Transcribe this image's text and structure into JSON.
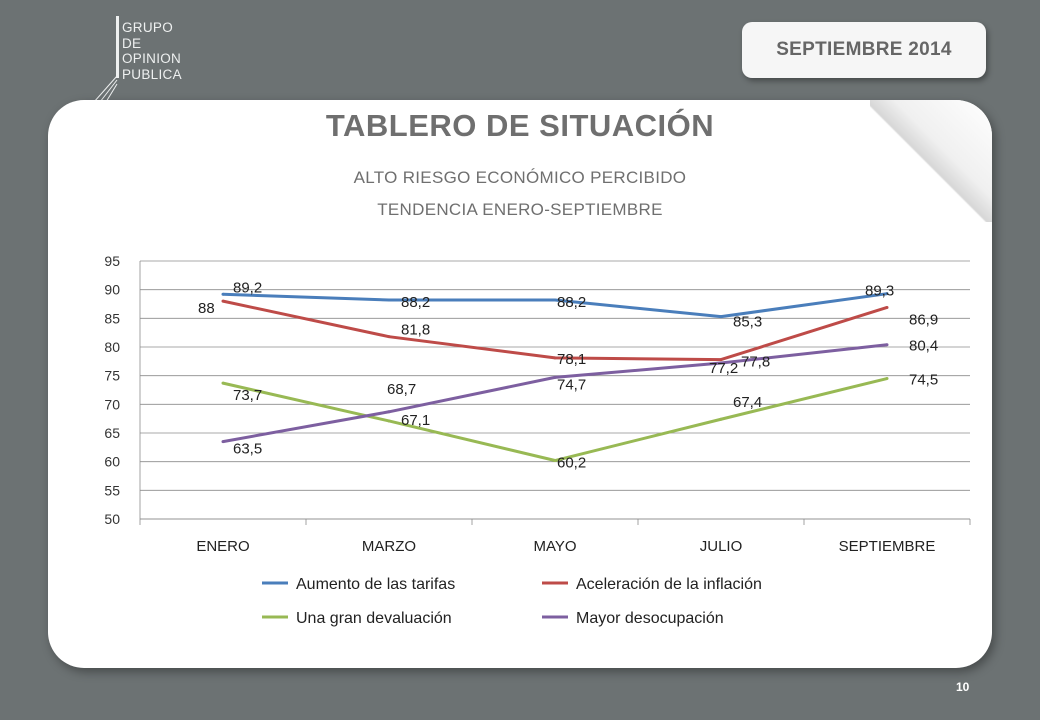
{
  "logo": {
    "lines": [
      "GRUPO",
      "DE",
      "OPINION",
      "PUBLICA"
    ]
  },
  "header": {
    "date": "SEPTIEMBRE  2014"
  },
  "slide": {
    "title": "TABLERO DE SITUACIÓN",
    "subtitle1": "ALTO  RIESGO ECONÓMICO PERCIBIDO",
    "subtitle2": "TENDENCIA ENERO-SEPTIEMBRE",
    "page_number": "10"
  },
  "chart_data": {
    "type": "line",
    "categories": [
      "ENERO",
      "MARZO",
      "MAYO",
      "JULIO",
      "SEPTIEMBRE"
    ],
    "ylim": [
      50,
      95
    ],
    "yticks": [
      50,
      55,
      60,
      65,
      70,
      75,
      80,
      85,
      90,
      95
    ],
    "grid": true,
    "legend_position": "bottom",
    "series": [
      {
        "name": "Aumento de las tarifas",
        "color": "#4a7ebb",
        "values": [
          89.2,
          88.2,
          88.2,
          85.3,
          89.3
        ],
        "labels": [
          "89,2",
          "88,2",
          "88,2",
          "85,3",
          "89,3"
        ]
      },
      {
        "name": "Aceleración  de la inflación",
        "color": "#be4b48",
        "values": [
          88,
          81.8,
          78.1,
          77.8,
          86.9
        ],
        "labels": [
          "88",
          "81,8",
          "78,1",
          "77,8",
          "86,9"
        ]
      },
      {
        "name": "Una gran devaluación",
        "color": "#98b954",
        "values": [
          73.7,
          67.1,
          60.2,
          67.4,
          74.5
        ],
        "labels": [
          "73,7",
          "67,1",
          "60,2",
          "67,4",
          "74,5"
        ]
      },
      {
        "name": "Mayor desocupación",
        "color": "#7d5fa0",
        "values": [
          63.5,
          68.7,
          74.7,
          77.2,
          80.4
        ],
        "labels": [
          "63,5",
          "68,7",
          "74,7",
          "77,2",
          "80,4"
        ]
      }
    ]
  }
}
